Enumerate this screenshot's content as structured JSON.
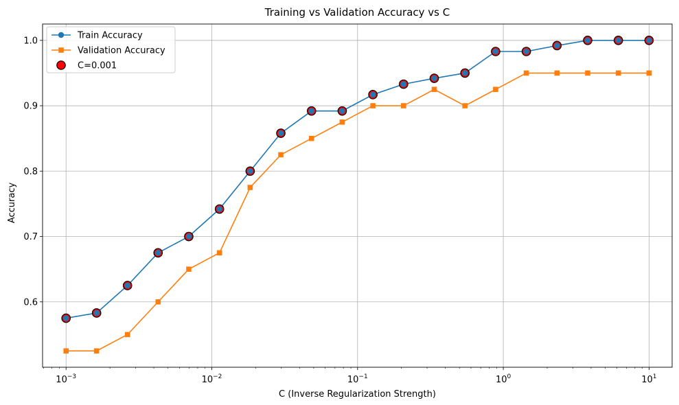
{
  "chart_data": {
    "type": "line",
    "title": "Training vs Validation Accuracy vs C",
    "xlabel": "C (Inverse Regularization Strength)",
    "ylabel": "Accuracy",
    "x_scale": "log",
    "xlim": [
      0.00069,
      14.4
    ],
    "ylim": [
      0.5,
      1.025
    ],
    "x_ticks": [
      {
        "value": 0.001,
        "base": "10",
        "exp": "−3"
      },
      {
        "value": 0.01,
        "base": "10",
        "exp": "−2"
      },
      {
        "value": 0.1,
        "base": "10",
        "exp": "−1"
      },
      {
        "value": 1,
        "base": "10",
        "exp": "0"
      },
      {
        "value": 10,
        "base": "10",
        "exp": "1"
      }
    ],
    "y_ticks": [
      {
        "value": 0.6,
        "label": "0.6"
      },
      {
        "value": 0.7,
        "label": "0.7"
      },
      {
        "value": 0.8,
        "label": "0.8"
      },
      {
        "value": 0.9,
        "label": "0.9"
      },
      {
        "value": 1.0,
        "label": "1.0"
      }
    ],
    "grid": true,
    "legend_position": "top-left",
    "x": [
      0.001,
      0.00162,
      0.00264,
      0.00428,
      0.00695,
      0.01129,
      0.01833,
      0.02976,
      0.04833,
      0.07848,
      0.12743,
      0.20691,
      0.33598,
      0.54556,
      0.88587,
      1.43845,
      2.33572,
      3.79269,
      6.15848,
      10.0
    ],
    "series": [
      {
        "name": "Train Accuracy",
        "color": "#1f77b4",
        "marker": "circle",
        "values": [
          0.575,
          0.583,
          0.625,
          0.675,
          0.7,
          0.742,
          0.8,
          0.858,
          0.892,
          0.892,
          0.917,
          0.933,
          0.942,
          0.95,
          0.983,
          0.983,
          0.992,
          1.0,
          1.0,
          1.0
        ]
      },
      {
        "name": "Validation Accuracy",
        "color": "#ff7f0e",
        "marker": "square",
        "values": [
          0.525,
          0.525,
          0.55,
          0.6,
          0.65,
          0.675,
          0.775,
          0.825,
          0.85,
          0.875,
          0.9,
          0.9,
          0.925,
          0.9,
          0.925,
          0.95,
          0.95,
          0.95,
          0.95,
          0.95
        ]
      }
    ],
    "highlight": {
      "name": "C=0.001",
      "color": "#ff0000",
      "edge_color": "#000000",
      "marker": "circle"
    },
    "grid_color": "#b0b0b0"
  }
}
